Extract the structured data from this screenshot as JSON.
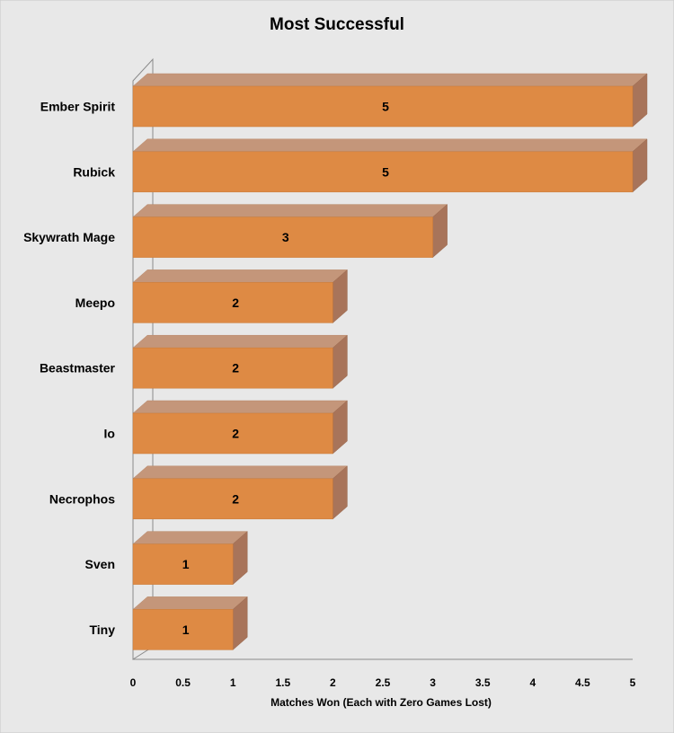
{
  "chart_data": {
    "type": "bar",
    "orientation": "horizontal",
    "title": "Most Successful",
    "xlabel": "Matches Won (Each with Zero Games Lost)",
    "ylabel": "",
    "categories": [
      "Ember Spirit",
      "Rubick",
      "Skywrath Mage",
      "Meepo",
      "Beastmaster",
      "Io",
      "Necrophos",
      "Sven",
      "Tiny"
    ],
    "values": [
      5,
      5,
      3,
      2,
      2,
      2,
      2,
      1,
      1
    ],
    "data_labels": [
      "5",
      "5",
      "3",
      "2",
      "2",
      "2",
      "2",
      "1",
      "1"
    ],
    "xlim": [
      0,
      5
    ],
    "x_ticks": [
      "0",
      "0.5",
      "1",
      "1.5",
      "2",
      "2.5",
      "3",
      "3.5",
      "4",
      "4.5",
      "5"
    ],
    "grid": false,
    "legend": "none",
    "style": "3d",
    "colors": {
      "bar_front": "#de8a44",
      "bar_top": "#c4967a",
      "bar_side": "#a8745a",
      "background": "#e8e8e8"
    }
  }
}
